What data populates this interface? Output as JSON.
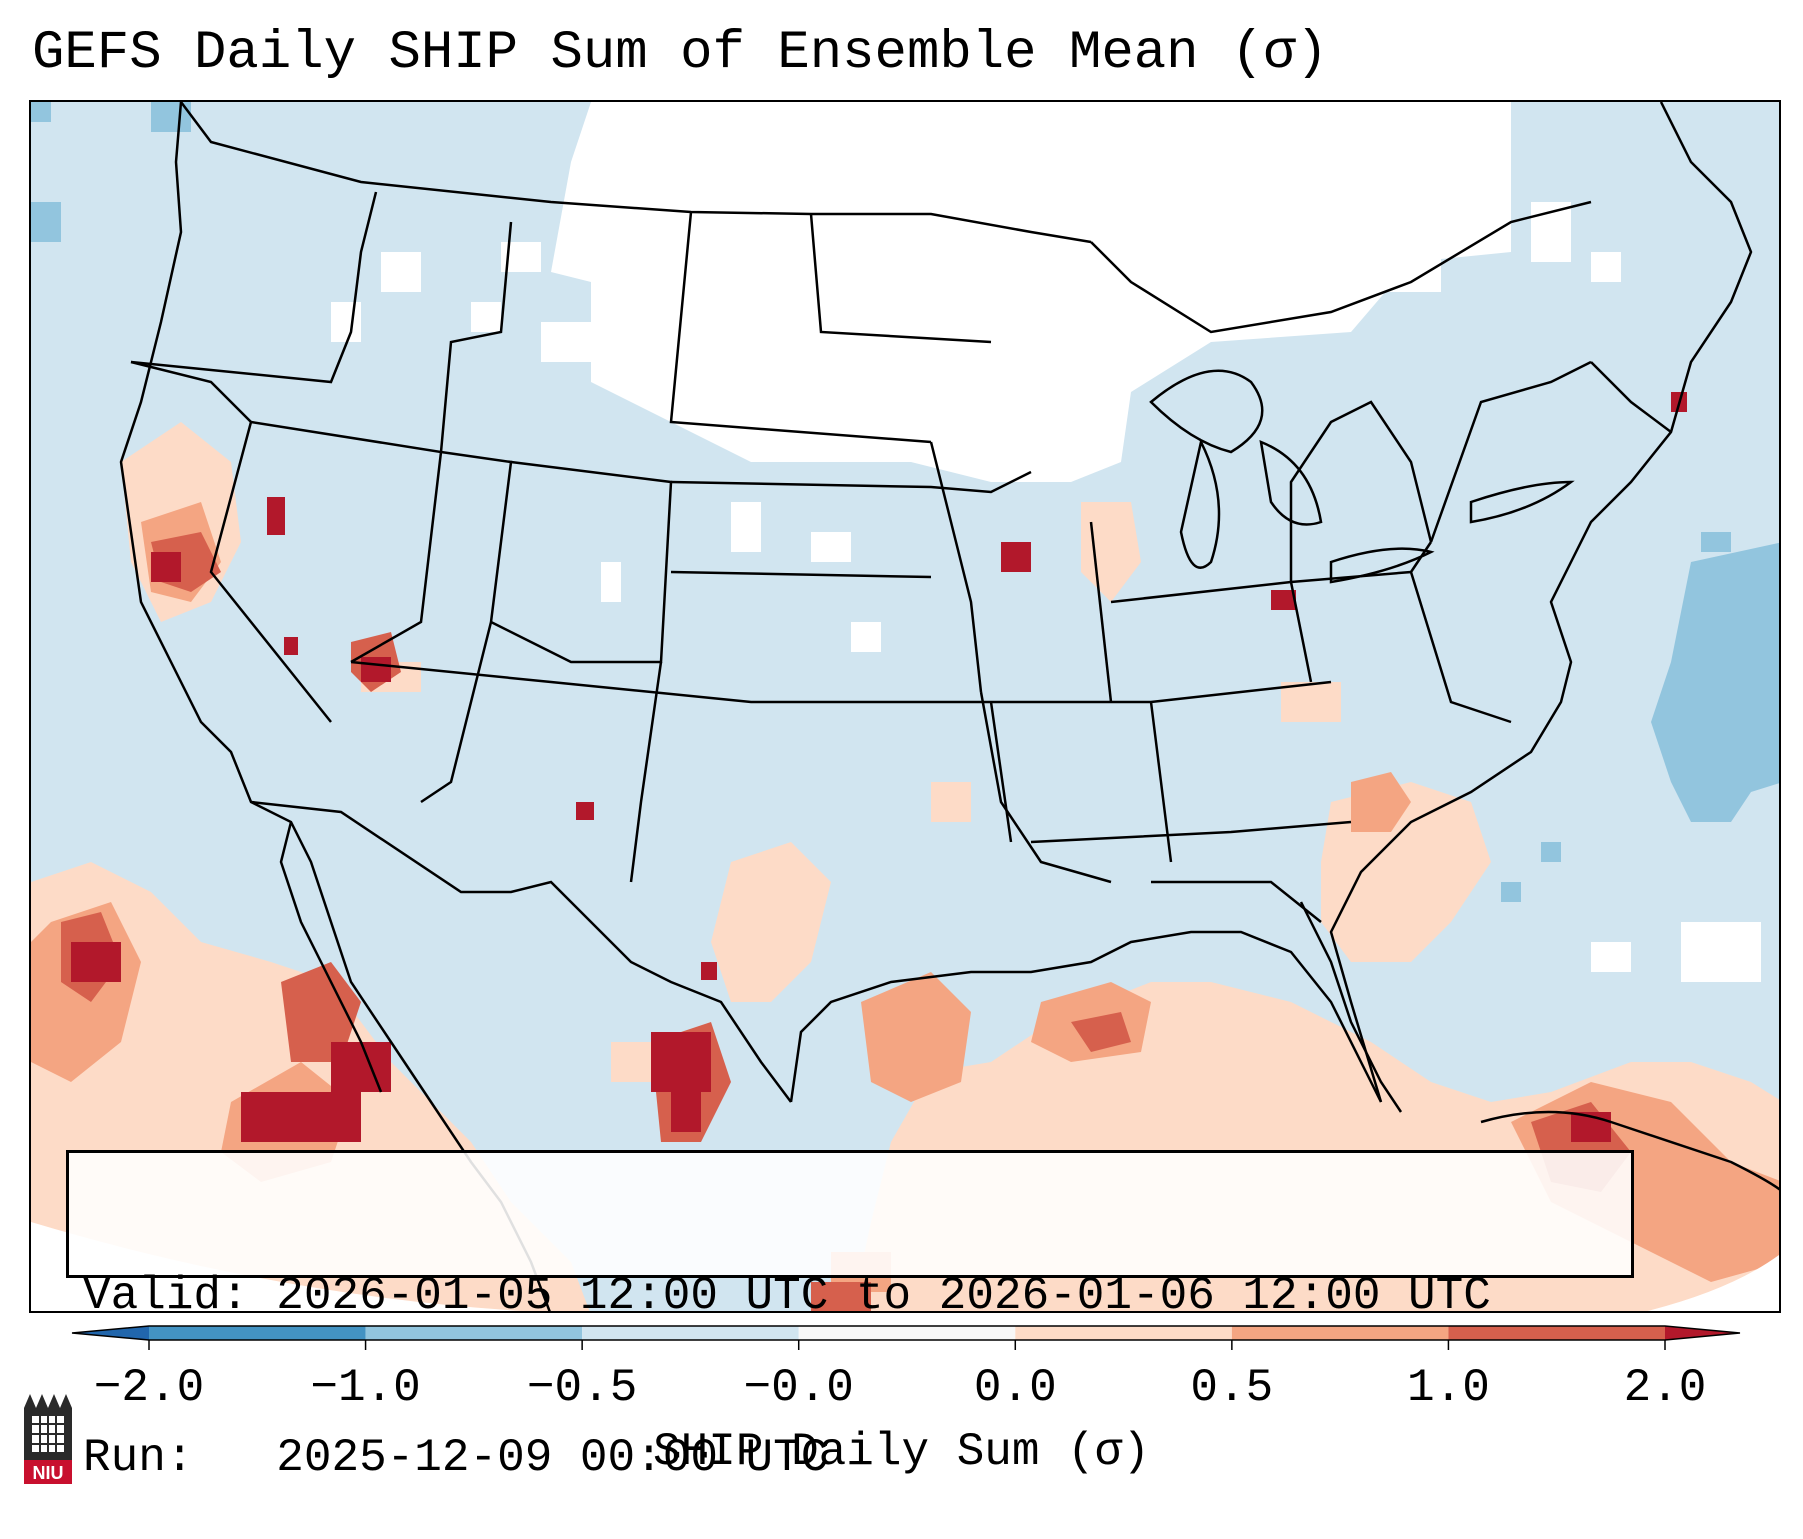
{
  "title": "GEFS Daily SHIP Sum of Ensemble Mean (σ)",
  "info": {
    "valid_label": "Valid:",
    "valid_value": "2026-01-05 12:00 UTC to 2026-01-06 12:00 UTC",
    "run_label": "Run:",
    "run_value": "2025-12-09 00:00 UTC"
  },
  "colorbar": {
    "label": "SHIP Daily Sum (σ)",
    "ticks": [
      "−2.0",
      "−1.0",
      "−0.5",
      "−0.0",
      "0.0",
      "0.5",
      "1.0",
      "2.0"
    ],
    "colors": [
      "#2166ac",
      "#4393c3",
      "#92c5de",
      "#d1e5f0",
      "#f7f7f7",
      "#fddbc7",
      "#f4a582",
      "#d6604d",
      "#b2182b"
    ]
  },
  "logo": {
    "text": "NIU"
  },
  "colors": {
    "neutral": "#ffffff",
    "slightly_negative": "#d1e5f0",
    "negative": "#92c5de",
    "slightly_positive": "#fddbc7",
    "positive": "#f4a582",
    "strong_positive": "#d6604d",
    "very_strong_positive": "#b2182b"
  }
}
